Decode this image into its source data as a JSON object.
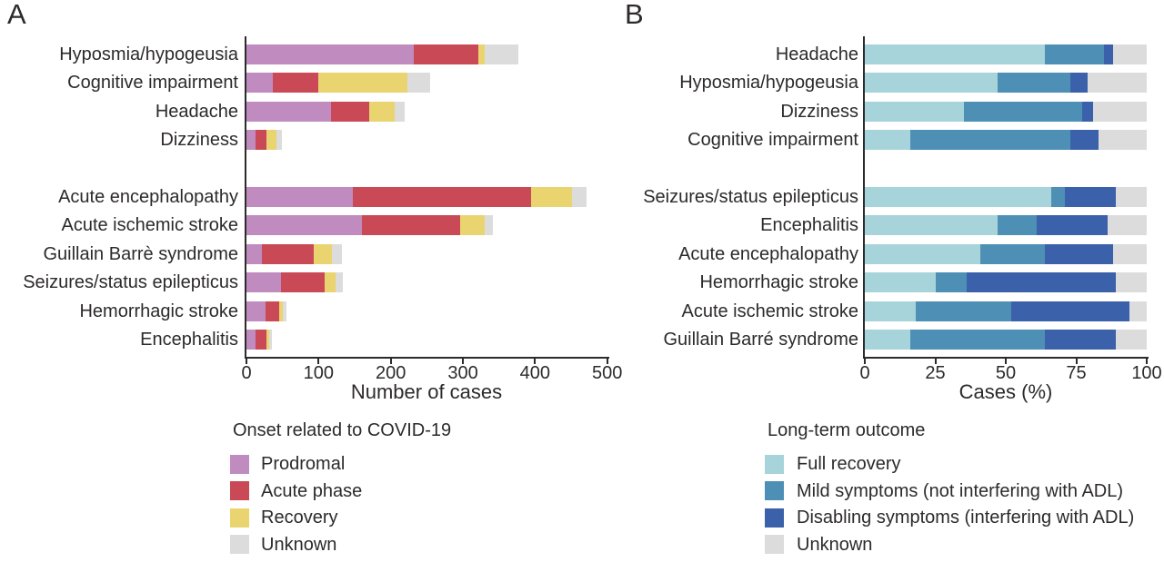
{
  "chart_data": [
    {
      "panel_letter": "A",
      "type": "bar",
      "orientation": "horizontal_stacked",
      "xlabel": "Number of cases",
      "xlim": [
        0,
        500
      ],
      "xticks": [
        0,
        100,
        200,
        300,
        400,
        500
      ],
      "legend_title": "Onset related to COVID-19",
      "legend_position": "below",
      "grid": false,
      "series": [
        {
          "name": "Prodromal",
          "color": "#c08cc0"
        },
        {
          "name": "Acute phase",
          "color": "#c94a56"
        },
        {
          "name": "Recovery",
          "color": "#e9d46f"
        },
        {
          "name": "Unknown",
          "color": "#dcdcdc"
        }
      ],
      "rows": [
        {
          "category": "Hyposmia/hypogeusia",
          "group": 0,
          "values": [
            232,
            90,
            8,
            47
          ]
        },
        {
          "category": "Cognitive impairment",
          "group": 0,
          "values": [
            37,
            62,
            124,
            32
          ]
        },
        {
          "category": "Headache",
          "group": 0,
          "values": [
            117,
            53,
            36,
            13
          ]
        },
        {
          "category": "Dizziness",
          "group": 0,
          "values": [
            13,
            15,
            14,
            7
          ]
        },
        {
          "category": "Acute encephalopathy",
          "group": 1,
          "values": [
            148,
            246,
            57,
            20
          ]
        },
        {
          "category": "Acute ischemic stroke",
          "group": 1,
          "values": [
            160,
            136,
            34,
            12
          ]
        },
        {
          "category": "Guillain Barrè syndrome",
          "group": 1,
          "values": [
            21,
            72,
            25,
            15
          ]
        },
        {
          "category": "Seizures/status epilepticus",
          "group": 1,
          "values": [
            48,
            61,
            14,
            11
          ]
        },
        {
          "category": "Hemorrhagic stroke",
          "group": 1,
          "values": [
            27,
            18,
            5,
            6
          ]
        },
        {
          "category": "Encephalitis",
          "group": 1,
          "values": [
            13,
            15,
            4,
            3
          ]
        }
      ]
    },
    {
      "panel_letter": "B",
      "type": "bar",
      "orientation": "horizontal_stacked",
      "xlabel": "Cases (%)",
      "xlim": [
        0,
        100
      ],
      "xticks": [
        0,
        25,
        50,
        75,
        100
      ],
      "legend_title": "Long-term outcome",
      "legend_position": "below",
      "grid": false,
      "series": [
        {
          "name": "Full recovery",
          "color": "#a7d3da"
        },
        {
          "name": "Mild symptoms (not interfering with ADL)",
          "color": "#4e90b5"
        },
        {
          "name": "Disabling symptoms (interfering with ADL)",
          "color": "#3a61a9"
        },
        {
          "name": "Unknown",
          "color": "#dcdcdc"
        }
      ],
      "rows": [
        {
          "category": "Headache",
          "group": 0,
          "values": [
            64,
            21,
            3,
            12
          ]
        },
        {
          "category": "Hyposmia/hypogeusia",
          "group": 0,
          "values": [
            47,
            26,
            6,
            21
          ]
        },
        {
          "category": "Dizziness",
          "group": 0,
          "values": [
            35,
            42,
            4,
            19
          ]
        },
        {
          "category": "Cognitive impairment",
          "group": 0,
          "values": [
            16,
            57,
            10,
            17
          ]
        },
        {
          "category": "Seizures/status epilepticus",
          "group": 1,
          "values": [
            66,
            5,
            18,
            11
          ]
        },
        {
          "category": "Encephalitis",
          "group": 1,
          "values": [
            47,
            14,
            25,
            14
          ]
        },
        {
          "category": "Acute encephalopathy",
          "group": 1,
          "values": [
            41,
            23,
            24,
            12
          ]
        },
        {
          "category": "Hemorrhagic stroke",
          "group": 1,
          "values": [
            25,
            11,
            53,
            11
          ]
        },
        {
          "category": "Acute ischemic stroke",
          "group": 1,
          "values": [
            18,
            34,
            42,
            6
          ]
        },
        {
          "category": "Guillain Barré syndrome",
          "group": 1,
          "values": [
            16,
            48,
            25,
            11
          ]
        }
      ]
    }
  ]
}
